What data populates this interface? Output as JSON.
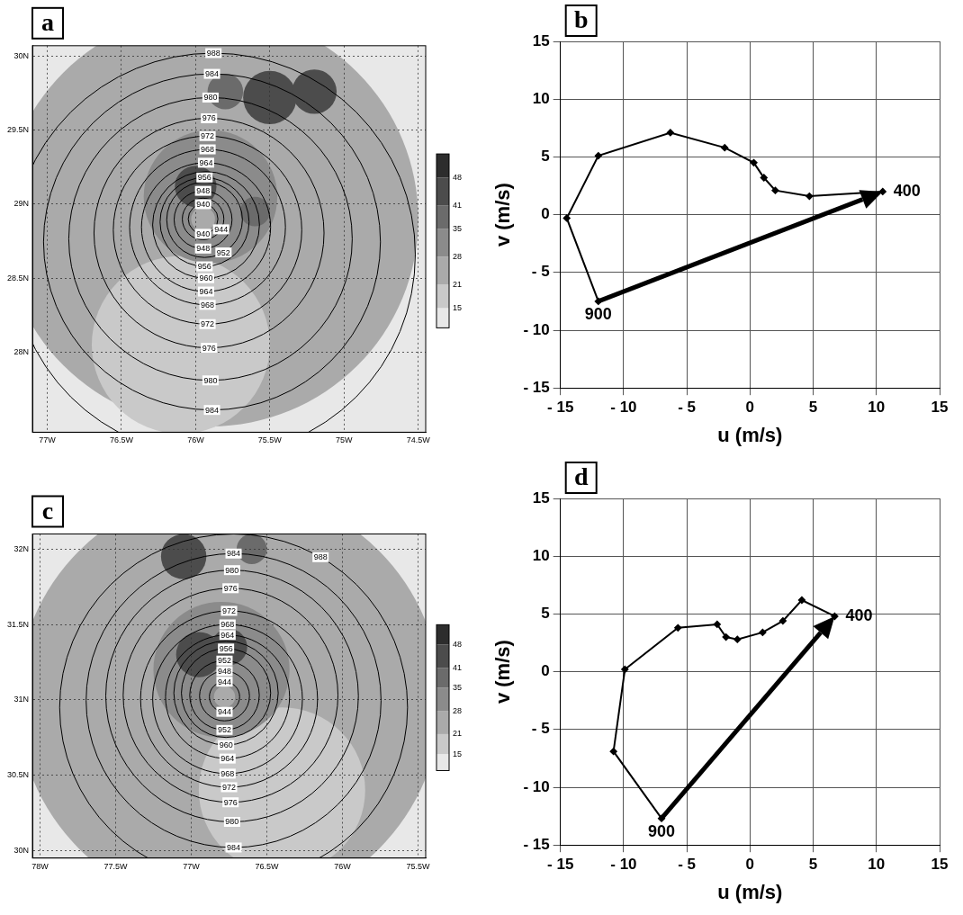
{
  "chart_data": [
    {
      "type": "map",
      "panel": "a",
      "xlim": [
        -77.1,
        -74.45
      ],
      "xticks": [
        {
          "value": -77,
          "label": "77W"
        },
        {
          "value": -76.5,
          "label": "76.5W"
        },
        {
          "value": -76,
          "label": "76W"
        },
        {
          "value": -75.5,
          "label": "75.5W"
        },
        {
          "value": -75,
          "label": "75W"
        },
        {
          "value": -74.5,
          "label": "74.5W"
        }
      ],
      "ylim": [
        27.46,
        30.07
      ],
      "yticks": [
        {
          "value": 28,
          "label": "28N"
        },
        {
          "value": 28.5,
          "label": "28.5N"
        },
        {
          "value": 29,
          "label": "29N"
        },
        {
          "value": 29.5,
          "label": "29.5N"
        },
        {
          "value": 30,
          "label": "30N"
        }
      ],
      "grid": true,
      "contours": [
        {
          "value": 940,
          "lon": -75.95,
          "lat": 28.9,
          "r": 0.1
        },
        {
          "value": 944,
          "lon": -75.95,
          "lat": 28.9,
          "r": 0.14
        },
        {
          "value": 948,
          "lon": -75.95,
          "lat": 28.895,
          "r": 0.195
        },
        {
          "value": 952,
          "lon": -75.94,
          "lat": 28.895,
          "r": 0.255
        },
        {
          "value": 956,
          "lon": -75.94,
          "lat": 28.88,
          "r": 0.3
        },
        {
          "value": 960,
          "lon": -75.93,
          "lat": 28.86,
          "r": 0.36
        },
        {
          "value": 964,
          "lon": -75.93,
          "lat": 28.845,
          "r": 0.435
        },
        {
          "value": 968,
          "lon": -75.92,
          "lat": 28.845,
          "r": 0.525
        },
        {
          "value": 972,
          "lon": -75.92,
          "lat": 28.825,
          "r": 0.635
        },
        {
          "value": 976,
          "lon": -75.91,
          "lat": 28.805,
          "r": 0.775
        },
        {
          "value": 980,
          "lon": -75.9,
          "lat": 28.765,
          "r": 0.955
        },
        {
          "value": 984,
          "lon": -75.89,
          "lat": 28.745,
          "r": 1.135
        },
        {
          "value": 988,
          "lon": -75.88,
          "lat": 28.66,
          "r": 1.36
        }
      ],
      "shading": [
        {
          "lon": -75.9,
          "lat": 28.9,
          "r": 1.4,
          "value": 24
        },
        {
          "lon": -76.1,
          "lat": 28.05,
          "r": 0.6,
          "value": 17
        },
        {
          "lon": -75.9,
          "lat": 29.05,
          "r": 0.45,
          "value": 30
        },
        {
          "lon": -76.0,
          "lat": 29.12,
          "r": 0.14,
          "value": 46
        },
        {
          "lon": -75.6,
          "lat": 28.95,
          "r": 0.1,
          "value": 40
        },
        {
          "lon": -75.5,
          "lat": 29.72,
          "r": 0.18,
          "value": 45
        },
        {
          "lon": -75.2,
          "lat": 29.76,
          "r": 0.15,
          "value": 43
        },
        {
          "lon": -75.8,
          "lat": 29.76,
          "r": 0.12,
          "value": 40
        },
        {
          "lon": -75.95,
          "lat": 28.9,
          "r": 0.08,
          "value": 21
        }
      ],
      "colorbar": {
        "range": [
          10,
          54
        ],
        "ticks": [
          15,
          21,
          28,
          35,
          41,
          48
        ]
      }
    },
    {
      "type": "line",
      "panel": "b",
      "xlabel": "u (m/s)",
      "ylabel": "v (m/s)",
      "xlim": [
        -15,
        15
      ],
      "xticks": [
        {
          "value": -15,
          "label": "- 15"
        },
        {
          "value": -10,
          "label": "- 10"
        },
        {
          "value": -5,
          "label": "- 5"
        },
        0,
        5,
        10,
        15
      ],
      "ylim": [
        -15,
        15
      ],
      "yticks": [
        {
          "value": -15,
          "label": "- 15"
        },
        {
          "value": -10,
          "label": "- 10"
        },
        {
          "value": -5,
          "label": "- 5"
        },
        0,
        5,
        10,
        15
      ],
      "grid": true,
      "color": "#000000",
      "marker": "diamond",
      "line_style": "solid",
      "x": [
        -12,
        -14.5,
        -12,
        -6.3,
        -2,
        0.3,
        1.1,
        2,
        4.7,
        10.5
      ],
      "values": [
        -7.5,
        -0.3,
        5.1,
        7.1,
        5.8,
        4.5,
        3.2,
        2.1,
        1.6,
        2
      ],
      "point_labels": [
        "900",
        null,
        null,
        null,
        null,
        null,
        null,
        null,
        null,
        "400"
      ]
    },
    {
      "type": "map",
      "panel": "c",
      "xlim": [
        -78.05,
        -75.45
      ],
      "xticks": [
        {
          "value": -78,
          "label": "78W"
        },
        {
          "value": -77.5,
          "label": "77.5W"
        },
        {
          "value": -77,
          "label": "77W"
        },
        {
          "value": -76.5,
          "label": "76.5W"
        },
        {
          "value": -76,
          "label": "76W"
        },
        {
          "value": -75.5,
          "label": "75.5W"
        }
      ],
      "ylim": [
        29.95,
        32.1
      ],
      "yticks": [
        {
          "value": 30,
          "label": "30N"
        },
        {
          "value": 30.5,
          "label": "30.5N"
        },
        {
          "value": 31,
          "label": "31N"
        },
        {
          "value": 31.5,
          "label": "31.5N"
        },
        {
          "value": 32,
          "label": "32N"
        }
      ],
      "grid": true,
      "contours": [
        {
          "value": 944,
          "lon": -76.78,
          "lat": 31.02,
          "r": 0.1
        },
        {
          "value": 948,
          "lon": -76.78,
          "lat": 31.025,
          "r": 0.165
        },
        {
          "value": 952,
          "lon": -76.78,
          "lat": 31.03,
          "r": 0.23
        },
        {
          "value": 956,
          "lon": -76.77,
          "lat": 31.045,
          "r": 0.295
        },
        {
          "value": 960,
          "lon": -76.77,
          "lat": 31.045,
          "r": 0.345
        },
        {
          "value": 964,
          "lon": -76.76,
          "lat": 31.02,
          "r": 0.41
        },
        {
          "value": 968,
          "lon": -76.76,
          "lat": 31.005,
          "r": 0.495
        },
        {
          "value": 972,
          "lon": -76.75,
          "lat": 31.005,
          "r": 0.585
        },
        {
          "value": 976,
          "lon": -76.74,
          "lat": 31.03,
          "r": 0.71
        },
        {
          "value": 980,
          "lon": -76.73,
          "lat": 31.025,
          "r": 0.835
        },
        {
          "value": 984,
          "lon": -76.72,
          "lat": 30.995,
          "r": 0.975
        },
        {
          "value": 988,
          "lon": -76.72,
          "lat": 30.95,
          "r": 1.15
        }
      ],
      "shading": [
        {
          "lon": -76.75,
          "lat": 31.0,
          "r": 1.4,
          "value": 24
        },
        {
          "lon": -76.4,
          "lat": 30.4,
          "r": 0.55,
          "value": 17
        },
        {
          "lon": -76.8,
          "lat": 31.2,
          "r": 0.45,
          "value": 31
        },
        {
          "lon": -76.95,
          "lat": 31.3,
          "r": 0.15,
          "value": 46
        },
        {
          "lon": -76.75,
          "lat": 31.35,
          "r": 0.12,
          "value": 44
        },
        {
          "lon": -77.05,
          "lat": 31.95,
          "r": 0.15,
          "value": 44
        },
        {
          "lon": -76.6,
          "lat": 32.0,
          "r": 0.1,
          "value": 40
        },
        {
          "lon": -76.78,
          "lat": 31.02,
          "r": 0.07,
          "value": 21
        }
      ],
      "colorbar": {
        "range": [
          10,
          54
        ],
        "ticks": [
          15,
          21,
          28,
          35,
          41,
          48
        ]
      }
    },
    {
      "type": "line",
      "panel": "d",
      "xlabel": "u (m/s)",
      "ylabel": "v (m/s)",
      "xlim": [
        -15,
        15
      ],
      "xticks": [
        {
          "value": -15,
          "label": "- 15"
        },
        {
          "value": -10,
          "label": "- 10"
        },
        {
          "value": -5,
          "label": "- 5"
        },
        0,
        5,
        10,
        15
      ],
      "ylim": [
        -15,
        15
      ],
      "yticks": [
        {
          "value": -15,
          "label": "- 15"
        },
        {
          "value": -10,
          "label": "- 10"
        },
        {
          "value": -5,
          "label": "- 5"
        },
        0,
        5,
        10,
        15
      ],
      "grid": true,
      "color": "#000000",
      "marker": "diamond",
      "line_style": "solid",
      "x": [
        -7,
        -10.8,
        -9.9,
        -5.7,
        -2.6,
        -1.9,
        -1,
        1,
        2.6,
        4.1,
        6.7
      ],
      "values": [
        -12.7,
        -6.9,
        0.2,
        3.8,
        4.1,
        3,
        2.8,
        3.4,
        4.4,
        6.2,
        4.8
      ],
      "point_labels": [
        "900",
        null,
        null,
        null,
        null,
        null,
        null,
        null,
        null,
        null,
        "400"
      ]
    }
  ]
}
